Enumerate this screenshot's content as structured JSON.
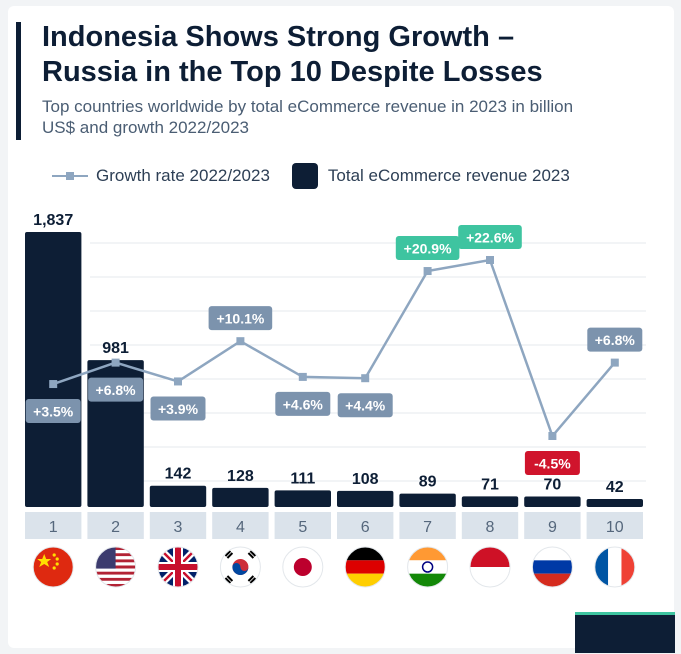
{
  "title_line1": "Indonesia Shows Strong Growth –",
  "title_line2": "Russia in the Top 10 Despite Losses",
  "subtitle_line1": "Top countries worldwide by total eCommerce revenue in 2023 in billion",
  "subtitle_line2": "US$ and growth 2022/2023",
  "legend": {
    "line_label": "Growth rate 2022/2023",
    "bar_label": "Total eCommerce revenue 2023"
  },
  "colors": {
    "bar": "#0d1e35",
    "line": "#8ea6c0",
    "label_default": "#7c93ad",
    "label_positive_high": "#3ec4a0",
    "label_negative": "#d0142c",
    "rank_box": "#dbe3eb"
  },
  "chart_data": {
    "type": "bar",
    "categories": [
      "1",
      "2",
      "3",
      "4",
      "5",
      "6",
      "7",
      "8",
      "9",
      "10"
    ],
    "flags": [
      "flag-china",
      "flag-usa",
      "flag-uk",
      "flag-south-korea",
      "flag-japan",
      "flag-germany",
      "flag-india",
      "flag-indonesia",
      "flag-russia",
      "flag-france"
    ],
    "series": [
      {
        "name": "Total eCommerce revenue 2023",
        "type": "bar",
        "values": [
          1837,
          981,
          142,
          128,
          111,
          108,
          89,
          71,
          70,
          42
        ],
        "labels": [
          "1,837",
          "981",
          "142",
          "128",
          "111",
          "108",
          "89",
          "71",
          "70",
          "42"
        ]
      },
      {
        "name": "Growth rate 2022/2023",
        "type": "line",
        "values": [
          3.5,
          6.8,
          3.9,
          10.1,
          4.6,
          4.4,
          20.9,
          22.6,
          -4.5,
          6.8
        ],
        "labels": [
          "+3.5%",
          "+6.8%",
          "+3.9%",
          "+10.1%",
          "+4.6%",
          "+4.4%",
          "+20.9%",
          "+22.6%",
          "-4.5%",
          "+6.8%"
        ],
        "label_style": [
          "default",
          "default",
          "default",
          "default",
          "default",
          "default",
          "high",
          "high",
          "negative",
          "default"
        ]
      }
    ],
    "grid": true,
    "legend_position": "top-left"
  }
}
